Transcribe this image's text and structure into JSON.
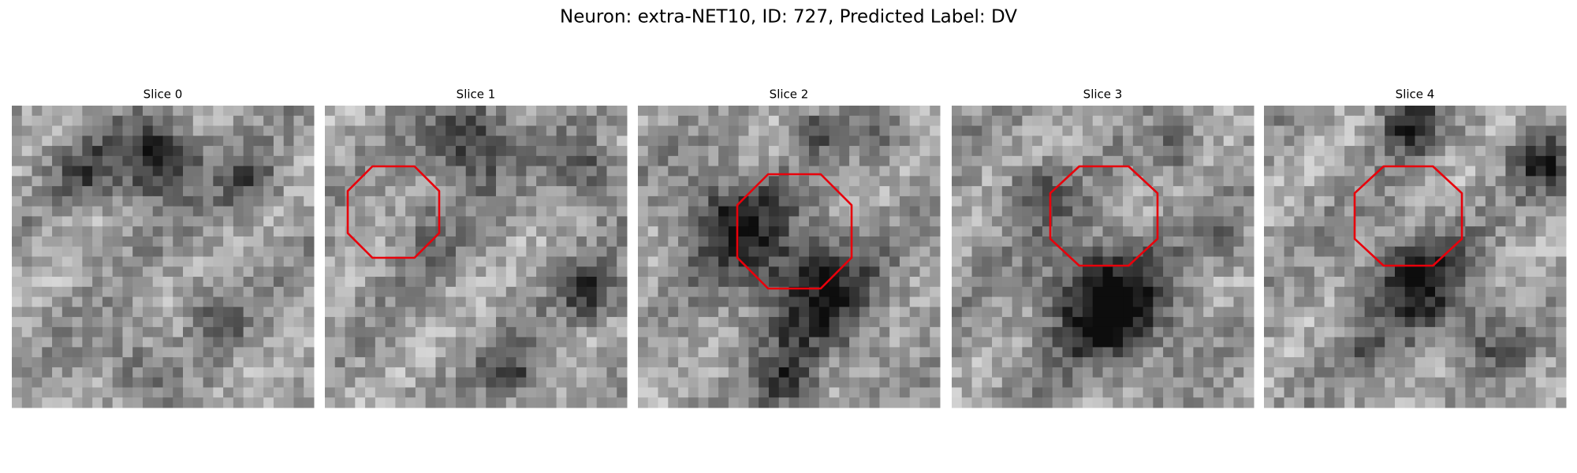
{
  "title": "Neuron: extra-NET10, ID: 727, Predicted Label: DV",
  "panels": [
    {
      "title": "Slice 0"
    },
    {
      "title": "Slice 1"
    },
    {
      "title": "Slice 2"
    },
    {
      "title": "Slice 3"
    },
    {
      "title": "Slice 4"
    }
  ]
}
